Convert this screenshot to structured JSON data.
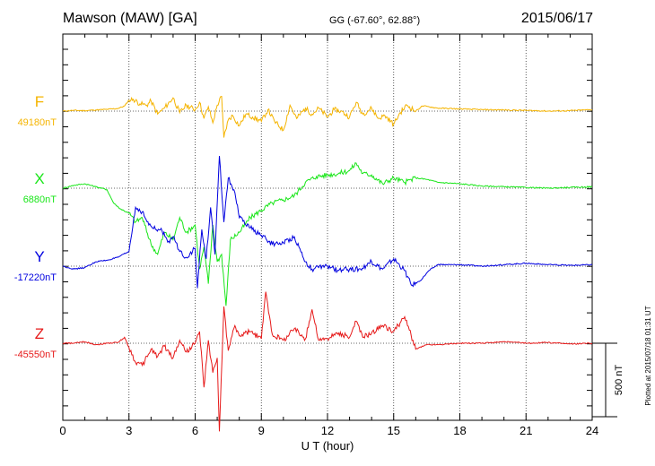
{
  "header": {
    "station": "Mawson (MAW)  [GA]",
    "coords": "GG (-67.60°,  62.88°)",
    "date": "2015/06/17"
  },
  "side_note": "Plotted at 2015/07/18 01:31  UT",
  "scale_label": "500 nT",
  "chart_data": {
    "type": "line",
    "title": "",
    "xlabel": "U T (hour)",
    "ylabel": "",
    "xlim": [
      0,
      24
    ],
    "xticks": [
      0,
      3,
      6,
      9,
      12,
      15,
      18,
      21,
      24
    ],
    "xtick_labels": [
      "0",
      "3",
      "6",
      "9",
      "12",
      "15",
      "18",
      "21",
      "24"
    ],
    "grid": "vertical dotted every 3 h, dotted baseline per channel",
    "scale_bar_nT": 500,
    "series": [
      {
        "name": "F",
        "baseline_label": "49180nT",
        "color": "#f5b400",
        "baseline_nT": 49180,
        "x": [
          0,
          0.5,
          1,
          1.5,
          2,
          2.5,
          2.8,
          3,
          3.2,
          3.5,
          3.8,
          4,
          4.3,
          4.6,
          5,
          5.3,
          5.6,
          6,
          6.2,
          6.4,
          6.6,
          6.8,
          7,
          7.2,
          7.3,
          7.5,
          7.7,
          8,
          8.3,
          8.6,
          9,
          9.3,
          9.6,
          10,
          10.3,
          10.6,
          11,
          11.3,
          11.6,
          12,
          12.3,
          12.6,
          13,
          13.3,
          13.6,
          14,
          14.3,
          14.6,
          15,
          15.3,
          15.6,
          16,
          16.3,
          16.6,
          17,
          18,
          19,
          20,
          21,
          22,
          23,
          24
        ],
        "values": [
          0,
          5,
          3,
          8,
          12,
          18,
          35,
          75,
          80,
          50,
          40,
          70,
          -20,
          20,
          90,
          -10,
          40,
          10,
          60,
          -50,
          30,
          -80,
          40,
          100,
          -180,
          -60,
          -30,
          -100,
          -20,
          -40,
          -70,
          10,
          -70,
          -130,
          40,
          -50,
          20,
          -20,
          20,
          -40,
          10,
          0,
          -40,
          60,
          -20,
          20,
          -50,
          -30,
          -90,
          -10,
          40,
          0,
          35,
          30,
          20,
          15,
          10,
          8,
          5,
          0,
          3,
          10
        ]
      },
      {
        "name": "X",
        "baseline_label": "6880nT",
        "color": "#19e619",
        "baseline_nT": 6880,
        "x": [
          0,
          0.5,
          1,
          1.5,
          2,
          2.3,
          2.6,
          3,
          3.3,
          3.6,
          4,
          4.3,
          4.6,
          5,
          5.3,
          5.6,
          6,
          6.2,
          6.4,
          6.6,
          6.8,
          7,
          7.2,
          7.4,
          7.6,
          8,
          8.5,
          9,
          9.5,
          10,
          10.5,
          11,
          11.5,
          12,
          12.5,
          13,
          13.3,
          13.6,
          14,
          14.5,
          15,
          15.5,
          16,
          16.5,
          17,
          18,
          19,
          20,
          21,
          22,
          23,
          24
        ],
        "values": [
          0,
          20,
          30,
          10,
          -10,
          -100,
          -140,
          -170,
          -230,
          -200,
          -380,
          -450,
          -300,
          -350,
          -200,
          -300,
          -250,
          -550,
          -400,
          -650,
          -250,
          -500,
          -450,
          -800,
          -350,
          -300,
          -200,
          -150,
          -100,
          -80,
          -50,
          40,
          80,
          90,
          100,
          120,
          170,
          100,
          90,
          30,
          70,
          40,
          70,
          60,
          40,
          30,
          15,
          10,
          5,
          0,
          5,
          10
        ]
      },
      {
        "name": "Y",
        "baseline_label": "-17220nT",
        "color": "#0000e0",
        "baseline_nT": -17220,
        "x": [
          0,
          0.5,
          1,
          1.5,
          2,
          2.5,
          3,
          3.3,
          3.6,
          3.9,
          4.2,
          4.5,
          4.8,
          5,
          5.3,
          5.6,
          6,
          6.1,
          6.3,
          6.5,
          6.7,
          6.9,
          7.1,
          7.3,
          7.5,
          7.8,
          8,
          8.5,
          9,
          9.5,
          10,
          10.5,
          11,
          11.3,
          11.6,
          12,
          12.5,
          13,
          13.5,
          14,
          14.5,
          15,
          15.5,
          15.8,
          16.2,
          16.6,
          17,
          18,
          19,
          20,
          21,
          22,
          23,
          24
        ],
        "values": [
          0,
          -20,
          -10,
          30,
          40,
          60,
          100,
          400,
          370,
          280,
          250,
          240,
          170,
          200,
          100,
          60,
          120,
          -150,
          250,
          50,
          400,
          80,
          750,
          300,
          600,
          500,
          330,
          260,
          210,
          150,
          160,
          200,
          30,
          -20,
          -10,
          0,
          -30,
          -20,
          -20,
          30,
          -20,
          50,
          -30,
          -130,
          -100,
          -30,
          10,
          10,
          0,
          10,
          20,
          10,
          5,
          10
        ]
      },
      {
        "name": "Z",
        "baseline_label": "-45550nT",
        "color": "#e61919",
        "baseline_nT": -45550,
        "x": [
          0,
          0.5,
          1,
          1.5,
          2,
          2.5,
          2.8,
          3,
          3.3,
          3.6,
          4,
          4.3,
          4.6,
          5,
          5.3,
          5.6,
          6,
          6.2,
          6.4,
          6.6,
          6.8,
          7,
          7.1,
          7.3,
          7.5,
          7.8,
          8,
          8.5,
          9,
          9.2,
          9.5,
          10,
          10.5,
          11,
          11.3,
          11.6,
          12,
          12.5,
          13,
          13.3,
          13.6,
          14,
          14.5,
          15,
          15.5,
          16,
          16.5,
          17,
          18,
          19,
          20,
          21,
          22,
          23,
          24
        ],
        "values": [
          0,
          0,
          10,
          -10,
          0,
          5,
          40,
          -30,
          -130,
          -150,
          -40,
          -90,
          -20,
          -100,
          20,
          -60,
          0,
          80,
          -300,
          20,
          -200,
          -100,
          -600,
          250,
          -50,
          120,
          50,
          80,
          30,
          350,
          60,
          20,
          100,
          30,
          230,
          20,
          30,
          70,
          40,
          150,
          40,
          70,
          120,
          80,
          180,
          -40,
          -10,
          -10,
          0,
          0,
          10,
          0,
          5,
          -5,
          0
        ]
      }
    ]
  }
}
